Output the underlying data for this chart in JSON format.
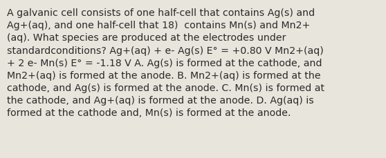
{
  "background_color": "#e8e5dc",
  "text_color": "#2a2a2a",
  "font_size": 10.2,
  "line1": "A galvanic cell consists of one half-cell that contains Ag(s) and",
  "line2": "Ag+(aq), and one half-cell that 18)  contains Mn(s) and Mn2+",
  "line3": "(aq). What species are produced at the electrodes under",
  "line4": "standardconditions? Ag+(aq) + e- Ag(s) E° = +0.80 V Mn2+(aq)",
  "line5": "+ 2 e- Mn(s) E° = -1.18 V A. Ag(s) is formed at the cathode, and",
  "line6": "Mn2+(aq) is formed at the anode. B. Mn2+(aq) is formed at the",
  "line7": "cathode, and Ag(s) is formed at the anode. C. Mn(s) is formed at",
  "line8": "the cathode, and Ag+(aq) is formed at the anode. D. Ag(aq) is",
  "line9": "formed at the cathode and, Mn(s) is formed at the anode."
}
